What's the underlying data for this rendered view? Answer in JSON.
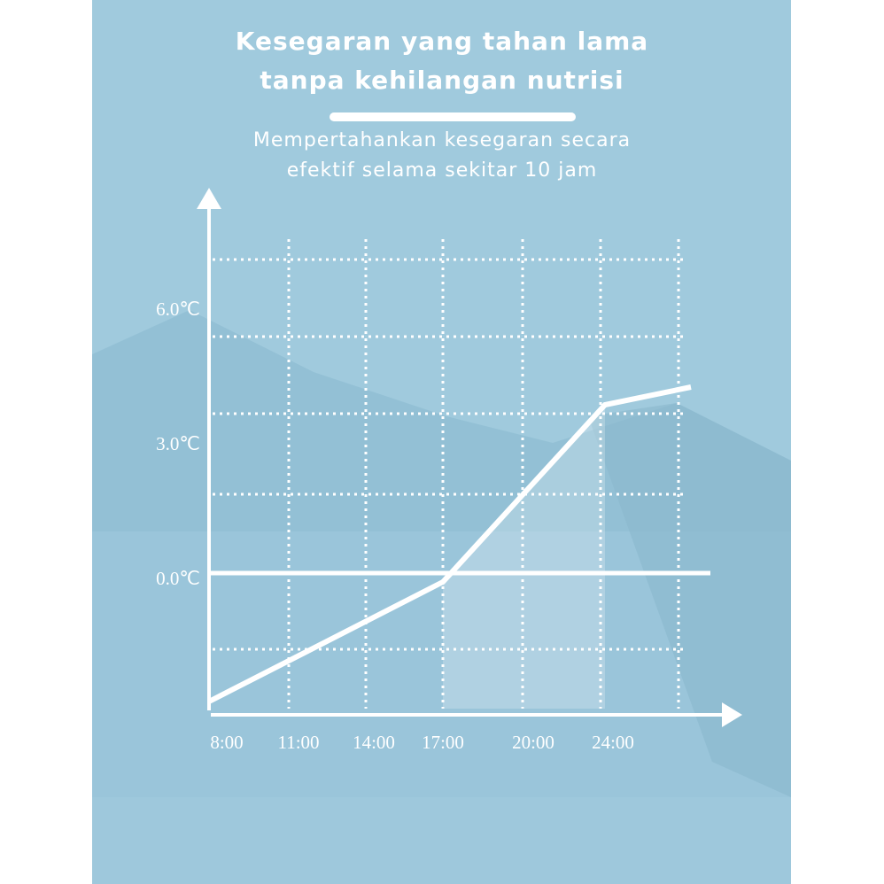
{
  "header": {
    "title_line1": "Kesegaran yang tahan lama",
    "title_line2": "tanpa kehilangan nutrisi",
    "subtitle_line1": "Mempertahankan kesegaran secara",
    "subtitle_line2": "efektif selama sekitar 10 jam"
  },
  "chart_data": {
    "type": "line",
    "x_tick_labels": [
      "8:00",
      "11:00",
      "14:00",
      "17:00",
      "20:00",
      "24:00"
    ],
    "y_tick_labels": [
      "6.0℃",
      "3.0℃",
      "0.0℃"
    ],
    "y_ticks": [
      6,
      3,
      0
    ],
    "points": [
      {
        "x": "8:00",
        "y": -2.9
      },
      {
        "x": "17:00",
        "y": -0.2
      },
      {
        "x": "24:00",
        "y": 3.8
      },
      {
        "x": "",
        "y": 4.2
      }
    ],
    "highlight_range": [
      "17:00",
      "24:00"
    ],
    "grid": true,
    "colors": {
      "background": "#a0cadd",
      "line": "#ffffff",
      "grid": "#ffffff"
    }
  }
}
